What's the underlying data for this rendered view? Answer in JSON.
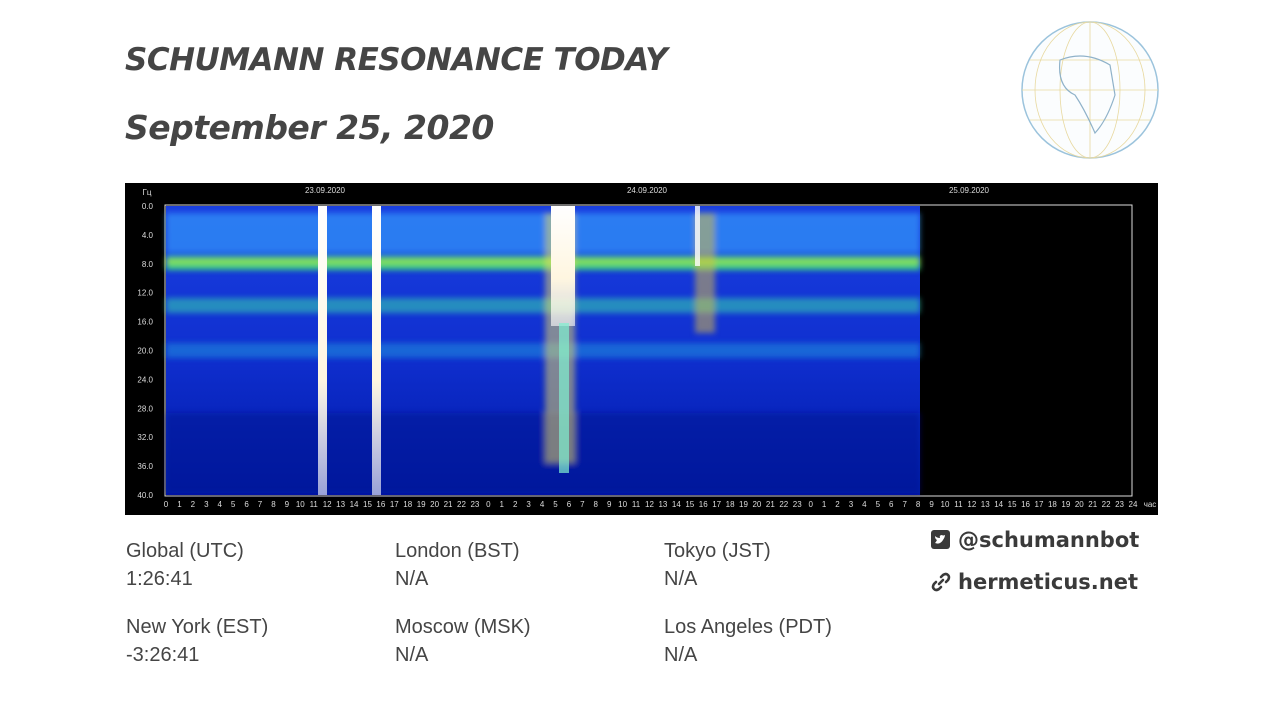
{
  "header": {
    "title": "SCHUMANN RESONANCE TODAY",
    "date": "September 25, 2020"
  },
  "spectrogram": {
    "unit_label": "Гц",
    "dates": [
      "23.09.2020",
      "24.09.2020",
      "25.09.2020"
    ],
    "y_labels": [
      "0.0",
      "4.0",
      "8.0",
      "12.0",
      "16.0",
      "20.0",
      "24.0",
      "28.0",
      "32.0",
      "36.0",
      "40.0"
    ],
    "x_labels": [
      "0",
      "1",
      "2",
      "3",
      "4",
      "5",
      "6",
      "7",
      "8",
      "9",
      "10",
      "11",
      "12",
      "13",
      "14",
      "15",
      "16",
      "17",
      "18",
      "19",
      "20",
      "21",
      "22",
      "23",
      "0",
      "1",
      "2",
      "3",
      "4",
      "5",
      "6",
      "7",
      "8",
      "9",
      "10",
      "11",
      "12",
      "13",
      "14",
      "15",
      "16",
      "17",
      "18",
      "19",
      "20",
      "21",
      "22",
      "23",
      "0",
      "1",
      "2",
      "3",
      "4",
      "5",
      "6",
      "7",
      "8",
      "9",
      "10",
      "11",
      "12",
      "13",
      "14",
      "15",
      "16",
      "17",
      "18",
      "19",
      "20",
      "21",
      "22",
      "23",
      "24"
    ],
    "x_unit": "час"
  },
  "times": [
    {
      "zone": "Global (UTC)",
      "value": "1:26:41"
    },
    {
      "zone": "London (BST)",
      "value": "N/A"
    },
    {
      "zone": "Tokyo (JST)",
      "value": "N/A"
    },
    {
      "zone": "New York (EST)",
      "value": "-3:26:41"
    },
    {
      "zone": "Moscow (MSK)",
      "value": "N/A"
    },
    {
      "zone": "Los Angeles (PDT)",
      "value": "N/A"
    }
  ],
  "social": {
    "twitter": "@schumannbot",
    "website": "hermeticus.net"
  }
}
